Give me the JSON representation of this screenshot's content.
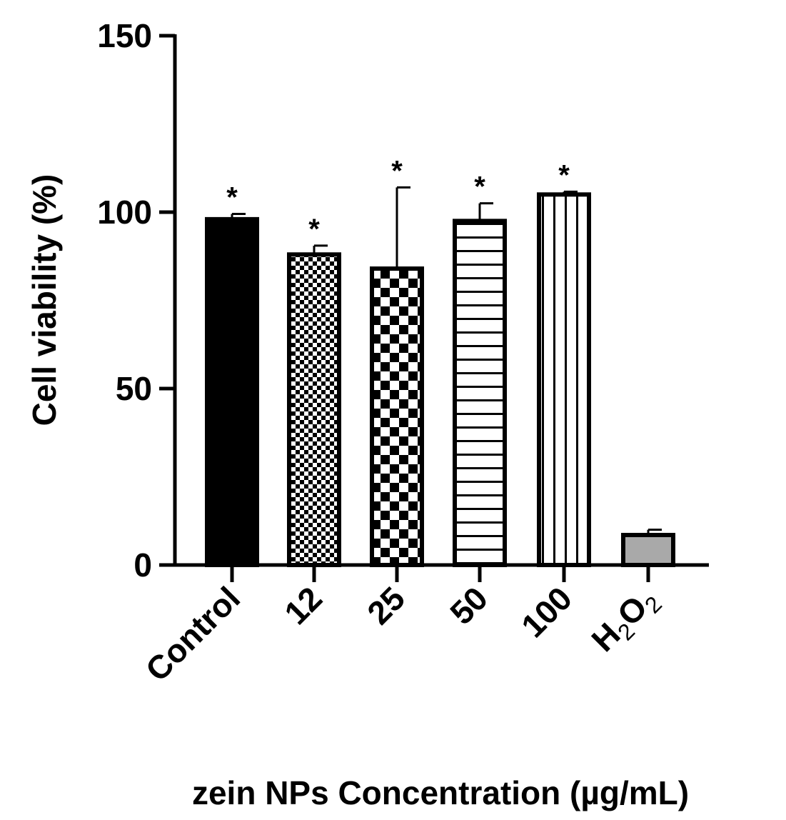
{
  "chart_data": {
    "type": "bar",
    "categories": [
      "Control",
      "12",
      "25",
      "50",
      "100",
      "H2O2"
    ],
    "category_labels": [
      {
        "text": "Control"
      },
      {
        "text": "12"
      },
      {
        "text": "25"
      },
      {
        "text": "50"
      },
      {
        "text": "100"
      },
      {
        "base": "H",
        "sub1": "2",
        "mid": "O",
        "sub2": "2"
      }
    ],
    "values": [
      98,
      88,
      84,
      97.5,
      105,
      8.5
    ],
    "errors": [
      1.5,
      2.5,
      23,
      5,
      0.8,
      1.5
    ],
    "significance": [
      "*",
      "*",
      "*",
      "*",
      "*",
      ""
    ],
    "patterns": [
      "solid-black",
      "fine-check",
      "coarse-check",
      "horizontal-lines",
      "vertical-lines",
      "solid-gray"
    ],
    "ylabel": "Cell viability (%)",
    "xlabel": "zein NPs Concentration (µg/mL)",
    "ylim": [
      0,
      150
    ],
    "yticks": [
      "0",
      "50",
      "100",
      "150"
    ],
    "grid": false,
    "legend": "none",
    "colors": {
      "bar_edge": "#000000",
      "h2o2_fill": "#a9a9a9"
    }
  }
}
